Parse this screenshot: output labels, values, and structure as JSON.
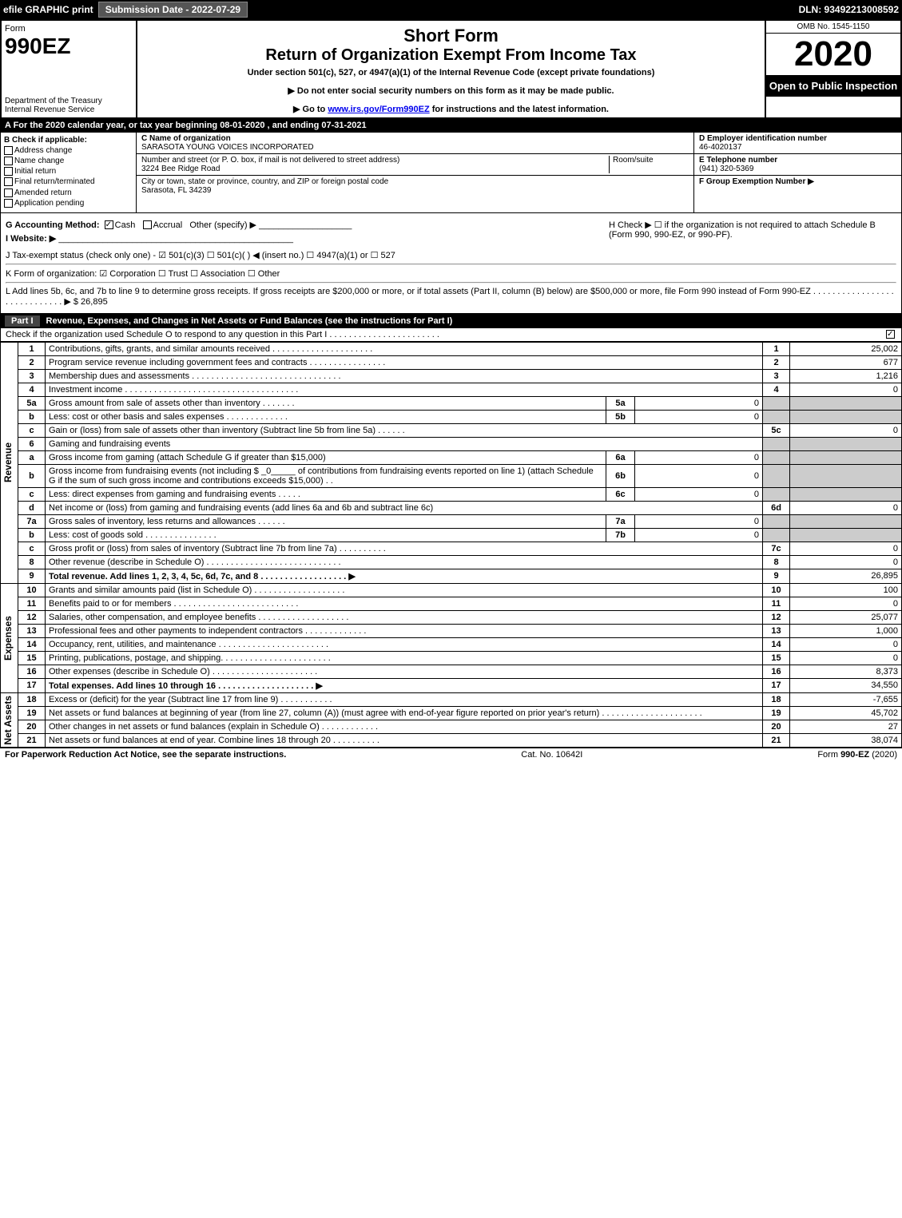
{
  "topbar": {
    "efile": "efile GRAPHIC print",
    "submission_label": "Submission Date - 2022-07-29",
    "dln": "DLN: 93492213008592"
  },
  "header": {
    "form_word": "Form",
    "form_number": "990EZ",
    "department": "Department of the Treasury",
    "irs": "Internal Revenue Service",
    "title1": "Short Form",
    "title2": "Return of Organization Exempt From Income Tax",
    "subtitle": "Under section 501(c), 527, or 4947(a)(1) of the Internal Revenue Code (except private foundations)",
    "note1": "▶ Do not enter social security numbers on this form as it may be made public.",
    "note2_pre": "▶ Go to ",
    "note2_link": "www.irs.gov/Form990EZ",
    "note2_post": " for instructions and the latest information.",
    "omb": "OMB No. 1545-1150",
    "year": "2020",
    "open": "Open to Public Inspection"
  },
  "period": "A For the 2020 calendar year, or tax year beginning 08-01-2020 , and ending 07-31-2021",
  "box_b": {
    "title": "B Check if applicable:",
    "options": [
      "Address change",
      "Name change",
      "Initial return",
      "Final return/terminated",
      "Amended return",
      "Application pending"
    ]
  },
  "box_c": {
    "label": "C Name of organization",
    "name": "SARASOTA YOUNG VOICES INCORPORATED",
    "addr_label": "Number and street (or P. O. box, if mail is not delivered to street address)",
    "room_label": "Room/suite",
    "address": "3224 Bee Ridge Road",
    "city_label": "City or town, state or province, country, and ZIP or foreign postal code",
    "city": "Sarasota, FL  34239"
  },
  "box_d": {
    "label": "D Employer identification number",
    "value": "46-4020137"
  },
  "box_e": {
    "label": "E Telephone number",
    "value": "(941) 320-5369"
  },
  "box_f": {
    "label": "F Group Exemption Number  ▶",
    "value": ""
  },
  "line_g": "G Accounting Method:",
  "line_g_opts": {
    "cash": "Cash",
    "accrual": "Accrual",
    "other": "Other (specify) ▶"
  },
  "line_h": "H   Check ▶  ☐  if the organization is not required to attach Schedule B (Form 990, 990-EZ, or 990-PF).",
  "line_i": "I Website: ▶",
  "line_j": "J Tax-exempt status (check only one) - ☑ 501(c)(3)  ☐ 501(c)(  ) ◀ (insert no.)  ☐ 4947(a)(1) or  ☐ 527",
  "line_k": "K Form of organization:  ☑ Corporation   ☐ Trust   ☐ Association   ☐ Other",
  "line_l": "L Add lines 5b, 6c, and 7b to line 9 to determine gross receipts. If gross receipts are $200,000 or more, or if total assets (Part II, column (B) below) are $500,000 or more, file Form 990 instead of Form 990-EZ  .  .  .  .  .  .  .  .  .  .  .  .  .  .  .  .  .  .  .  .  .  .  .  .  .  .  .  .  .  ▶ $ 26,895",
  "part1": {
    "label": "Part I",
    "title": "Revenue, Expenses, and Changes in Net Assets or Fund Balances (see the instructions for Part I)",
    "check_line": "Check if the organization used Schedule O to respond to any question in this Part I  .  .  .  .  .  .  .  .  .  .  .  .  .  .  .  .  .  .  .  .  .  .  .",
    "checked": true
  },
  "sections": {
    "revenue_label": "Revenue",
    "expenses_label": "Expenses",
    "net_label": "Net Assets"
  },
  "rows": [
    {
      "sec": "rev",
      "n": "1",
      "d": "Contributions, gifts, grants, and similar amounts received  .  .  .  .  .  .  .  .  .  .  .  .  .  .  .  .  .  .  .  .  .",
      "rn": "1",
      "v": "25,002"
    },
    {
      "sec": "rev",
      "n": "2",
      "d": "Program service revenue including government fees and contracts  .  .  .  .  .  .  .  .  .  .  .  .  .  .  .  .",
      "rn": "2",
      "v": "677"
    },
    {
      "sec": "rev",
      "n": "3",
      "d": "Membership dues and assessments  .  .  .  .  .  .  .  .  .  .  .  .  .  .  .  .  .  .  .  .  .  .  .  .  .  .  .  .  .  .  .",
      "rn": "3",
      "v": "1,216"
    },
    {
      "sec": "rev",
      "n": "4",
      "d": "Investment income  .  .  .  .  .  .  .  .  .  .  .  .  .  .  .  .  .  .  .  .  .  .  .  .  .  .  .  .  .  .  .  .  .  .  .  .",
      "rn": "4",
      "v": "0"
    },
    {
      "sec": "rev",
      "n": "5a",
      "d": "Gross amount from sale of assets other than inventory  .  .  .  .  .  .  .",
      "sn": "5a",
      "sv": "0",
      "shade": true
    },
    {
      "sec": "rev",
      "n": "b",
      "d": "Less: cost or other basis and sales expenses  .  .  .  .  .  .  .  .  .  .  .  .  .",
      "sn": "5b",
      "sv": "0",
      "shade": true
    },
    {
      "sec": "rev",
      "n": "c",
      "d": "Gain or (loss) from sale of assets other than inventory (Subtract line 5b from line 5a)  .  .  .  .  .  .",
      "rn": "5c",
      "v": "0"
    },
    {
      "sec": "rev",
      "n": "6",
      "d": "Gaming and fundraising events",
      "shade": true,
      "nosub": true
    },
    {
      "sec": "rev",
      "n": "a",
      "d": "Gross income from gaming (attach Schedule G if greater than $15,000)",
      "sn": "6a",
      "sv": "0",
      "shade": true
    },
    {
      "sec": "rev",
      "n": "b",
      "d": "Gross income from fundraising events (not including $ _0_____ of contributions from fundraising events reported on line 1) (attach Schedule G if the sum of such gross income and contributions exceeds $15,000)   .   .",
      "sn": "6b",
      "sv": "0",
      "shade": true
    },
    {
      "sec": "rev",
      "n": "c",
      "d": "Less: direct expenses from gaming and fundraising events  .  .  .  .  .",
      "sn": "6c",
      "sv": "0",
      "shade": true
    },
    {
      "sec": "rev",
      "n": "d",
      "d": "Net income or (loss) from gaming and fundraising events (add lines 6a and 6b and subtract line 6c)",
      "rn": "6d",
      "v": "0"
    },
    {
      "sec": "rev",
      "n": "7a",
      "d": "Gross sales of inventory, less returns and allowances  .  .  .  .  .  .",
      "sn": "7a",
      "sv": "0",
      "shade": true
    },
    {
      "sec": "rev",
      "n": "b",
      "d": "Less: cost of goods sold     .  .  .  .  .  .  .  .  .  .  .  .  .  .  .",
      "sn": "7b",
      "sv": "0",
      "shade": true
    },
    {
      "sec": "rev",
      "n": "c",
      "d": "Gross profit or (loss) from sales of inventory (Subtract line 7b from line 7a)  .  .  .  .  .  .  .  .  .  .",
      "rn": "7c",
      "v": "0"
    },
    {
      "sec": "rev",
      "n": "8",
      "d": "Other revenue (describe in Schedule O)  .  .  .  .  .  .  .  .  .  .  .  .  .  .  .  .  .  .  .  .  .  .  .  .  .  .  .  .",
      "rn": "8",
      "v": "0"
    },
    {
      "sec": "rev",
      "n": "9",
      "d": "Total revenue. Add lines 1, 2, 3, 4, 5c, 6d, 7c, and 8  .  .  .  .  .  .  .  .  .  .  .  .  .  .  .  .  .  .  ▶",
      "rn": "9",
      "v": "26,895",
      "bold": true
    },
    {
      "sec": "exp",
      "n": "10",
      "d": "Grants and similar amounts paid (list in Schedule O)  .  .  .  .  .  .  .  .  .  .  .  .  .  .  .  .  .  .  .",
      "rn": "10",
      "v": "100"
    },
    {
      "sec": "exp",
      "n": "11",
      "d": "Benefits paid to or for members     .  .  .  .  .  .  .  .  .  .  .  .  .  .  .  .  .  .  .  .  .  .  .  .  .  .",
      "rn": "11",
      "v": "0"
    },
    {
      "sec": "exp",
      "n": "12",
      "d": "Salaries, other compensation, and employee benefits  .  .  .  .  .  .  .  .  .  .  .  .  .  .  .  .  .  .  .",
      "rn": "12",
      "v": "25,077"
    },
    {
      "sec": "exp",
      "n": "13",
      "d": "Professional fees and other payments to independent contractors  .  .  .  .  .  .  .  .  .  .  .  .  .",
      "rn": "13",
      "v": "1,000"
    },
    {
      "sec": "exp",
      "n": "14",
      "d": "Occupancy, rent, utilities, and maintenance  .  .  .  .  .  .  .  .  .  .  .  .  .  .  .  .  .  .  .  .  .  .  .",
      "rn": "14",
      "v": "0"
    },
    {
      "sec": "exp",
      "n": "15",
      "d": "Printing, publications, postage, and shipping.  .  .  .  .  .  .  .  .  .  .  .  .  .  .  .  .  .  .  .  .  .  .",
      "rn": "15",
      "v": "0"
    },
    {
      "sec": "exp",
      "n": "16",
      "d": "Other expenses (describe in Schedule O)     .  .  .  .  .  .  .  .  .  .  .  .  .  .  .  .  .  .  .  .  .  .",
      "rn": "16",
      "v": "8,373"
    },
    {
      "sec": "exp",
      "n": "17",
      "d": "Total expenses. Add lines 10 through 16     .  .  .  .  .  .  .  .  .  .  .  .  .  .  .  .  .  .  .  .   ▶",
      "rn": "17",
      "v": "34,550",
      "bold": true
    },
    {
      "sec": "net",
      "n": "18",
      "d": "Excess or (deficit) for the year (Subtract line 17 from line 9)       .  .  .  .  .  .  .  .  .  .  .",
      "rn": "18",
      "v": "-7,655"
    },
    {
      "sec": "net",
      "n": "19",
      "d": "Net assets or fund balances at beginning of year (from line 27, column (A)) (must agree with end-of-year figure reported on prior year's return)  .  .  .  .  .  .  .  .  .  .  .  .  .  .  .  .  .  .  .  .  .",
      "rn": "19",
      "v": "45,702"
    },
    {
      "sec": "net",
      "n": "20",
      "d": "Other changes in net assets or fund balances (explain in Schedule O)  .  .  .  .  .  .  .  .  .  .  .  .",
      "rn": "20",
      "v": "27"
    },
    {
      "sec": "net",
      "n": "21",
      "d": "Net assets or fund balances at end of year. Combine lines 18 through 20  .  .  .  .  .  .  .  .  .  .",
      "rn": "21",
      "v": "38,074"
    }
  ],
  "footer": {
    "left": "For Paperwork Reduction Act Notice, see the separate instructions.",
    "mid": "Cat. No. 10642I",
    "right": "Form 990-EZ (2020)"
  }
}
